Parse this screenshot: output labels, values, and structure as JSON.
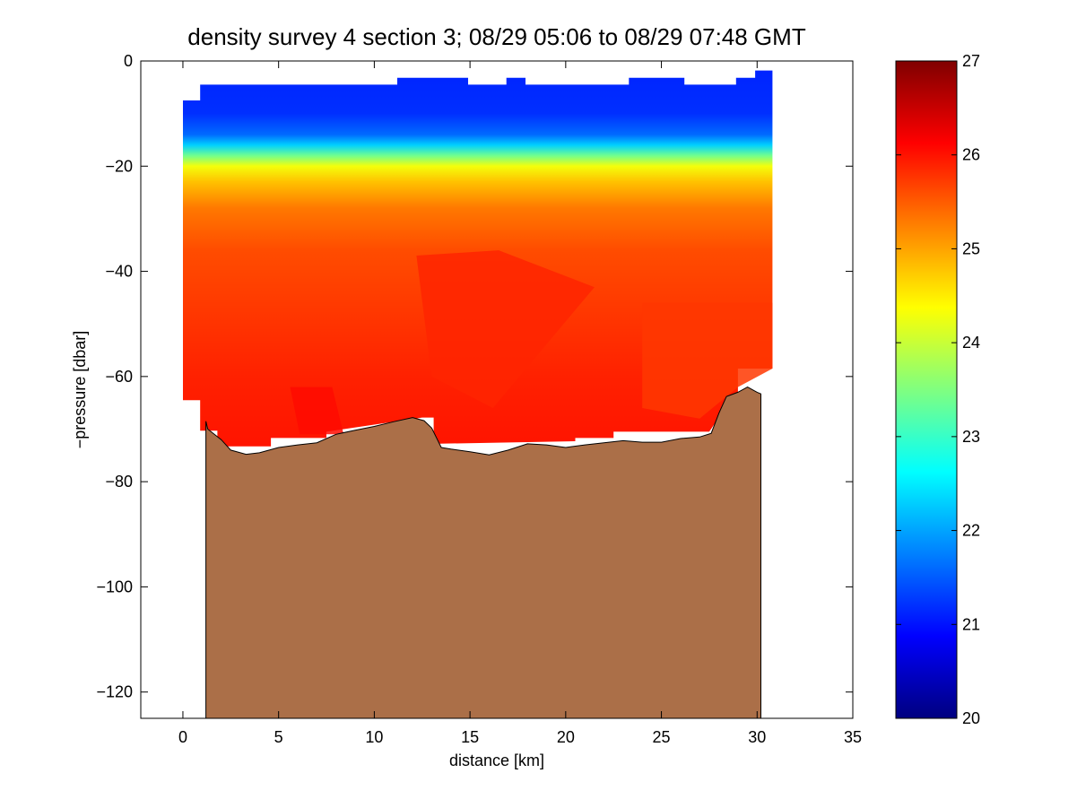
{
  "chart_data": {
    "type": "heatmap",
    "title": "density survey 4 section 3; 08/29 05:06 to 08/29 07:48 GMT",
    "xlabel": "distance [km]",
    "ylabel": "−pressure [dbar]",
    "xlim": [
      -2.2,
      35
    ],
    "ylim": [
      -125,
      0
    ],
    "x_ticks": [
      0,
      5,
      10,
      15,
      20,
      25,
      30,
      35
    ],
    "y_ticks": [
      0,
      -20,
      -40,
      -60,
      -80,
      -100,
      -120
    ],
    "x_tick_labels": [
      "0",
      "5",
      "10",
      "15",
      "20",
      "25",
      "30",
      "35"
    ],
    "y_tick_labels": [
      "0",
      "−20",
      "−40",
      "−60",
      "−80",
      "−100",
      "−120"
    ],
    "colorbar": {
      "colormap": "jet",
      "clim": [
        20,
        27
      ],
      "ticks": [
        20,
        21,
        22,
        23,
        24,
        25,
        26,
        27
      ],
      "tick_labels": [
        "20",
        "21",
        "22",
        "23",
        "24",
        "25",
        "26",
        "27"
      ]
    },
    "data_x_range": [
      0,
      30.8
    ],
    "data_top_edge": [
      [
        0,
        -7.5
      ],
      [
        0.9,
        -7.5
      ],
      [
        0.9,
        -4.5
      ],
      [
        11.2,
        -4.5
      ],
      [
        11.2,
        -3.2
      ],
      [
        14.9,
        -3.2
      ],
      [
        14.9,
        -4.5
      ],
      [
        16.9,
        -4.5
      ],
      [
        16.9,
        -3.2
      ],
      [
        17.9,
        -3.2
      ],
      [
        17.9,
        -4.5
      ],
      [
        23.3,
        -4.5
      ],
      [
        23.3,
        -3.2
      ],
      [
        26.2,
        -3.2
      ],
      [
        26.2,
        -4.5
      ],
      [
        28.9,
        -4.5
      ],
      [
        28.9,
        -3.2
      ],
      [
        29.9,
        -3.2
      ],
      [
        29.9,
        -1.8
      ],
      [
        30.8,
        -1.8
      ]
    ],
    "data_bottom_edge": [
      [
        0,
        -64.5
      ],
      [
        0.9,
        -64.5
      ],
      [
        0.9,
        -70.3
      ],
      [
        1.8,
        -70.3
      ],
      [
        1.8,
        -73.3
      ],
      [
        4.6,
        -73.3
      ],
      [
        4.6,
        -71.7
      ],
      [
        7.5,
        -71.7
      ],
      [
        7.5,
        -70.5
      ],
      [
        12.5,
        -67.8
      ],
      [
        13.1,
        -67.8
      ],
      [
        13.1,
        -72.8
      ],
      [
        20.5,
        -72.3
      ],
      [
        20.5,
        -71.7
      ],
      [
        22.5,
        -71.7
      ],
      [
        22.5,
        -70.5
      ],
      [
        27.5,
        -70.5
      ],
      [
        28.0,
        -67.8
      ],
      [
        29.0,
        -63.3
      ],
      [
        29.0,
        -58.5
      ],
      [
        30.8,
        -58.5
      ]
    ],
    "density_profile": [
      {
        "depth": 0,
        "value": 21.1
      },
      {
        "depth": -10,
        "value": 21.2
      },
      {
        "depth": -14,
        "value": 21.6
      },
      {
        "depth": -16,
        "value": 22.3
      },
      {
        "depth": -18,
        "value": 23.4
      },
      {
        "depth": -20,
        "value": 24.3
      },
      {
        "depth": -23,
        "value": 24.8
      },
      {
        "depth": -28,
        "value": 25.3
      },
      {
        "depth": -36,
        "value": 25.6
      },
      {
        "depth": -48,
        "value": 25.75
      },
      {
        "depth": -60,
        "value": 25.9
      },
      {
        "depth": -75,
        "value": 26.0
      }
    ],
    "bottom_patches": [
      {
        "x": [
          12.2,
          16.5,
          21.5,
          16.2,
          13.0
        ],
        "y": [
          -37,
          -36,
          -43,
          -66,
          -60
        ],
        "value": 25.88
      },
      {
        "x": [
          5.6,
          7.8,
          8.4,
          6.1
        ],
        "y": [
          -62,
          -62,
          -71,
          -71
        ],
        "value": 26.05
      },
      {
        "x": [
          24.0,
          30.8,
          30.8,
          29.0,
          27.0,
          24.0
        ],
        "y": [
          -46,
          -46,
          -58.5,
          -62,
          -68,
          -66
        ],
        "value": 25.75
      }
    ],
    "bathymetry": {
      "color": "#AB6F48",
      "depths": [
        [
          1.2,
          -68.5
        ],
        [
          1.3,
          -70.0
        ],
        [
          2.0,
          -72.0
        ],
        [
          2.5,
          -74.0
        ],
        [
          3.3,
          -74.8
        ],
        [
          4.0,
          -74.5
        ],
        [
          5.0,
          -73.5
        ],
        [
          6.0,
          -73.0
        ],
        [
          7.0,
          -72.6
        ],
        [
          8.0,
          -71.0
        ],
        [
          9.0,
          -70.2
        ],
        [
          10.0,
          -69.5
        ],
        [
          11.0,
          -68.6
        ],
        [
          12.0,
          -67.8
        ],
        [
          12.6,
          -68.4
        ],
        [
          13.0,
          -69.8
        ],
        [
          13.5,
          -73.5
        ],
        [
          14.0,
          -73.8
        ],
        [
          15.0,
          -74.3
        ],
        [
          16.0,
          -74.9
        ],
        [
          17.0,
          -74.0
        ],
        [
          18.0,
          -72.8
        ],
        [
          19.0,
          -73.0
        ],
        [
          20.0,
          -73.5
        ],
        [
          21.0,
          -73.0
        ],
        [
          22.0,
          -72.6
        ],
        [
          23.0,
          -72.2
        ],
        [
          24.0,
          -72.5
        ],
        [
          25.0,
          -72.5
        ],
        [
          26.0,
          -71.8
        ],
        [
          27.0,
          -71.5
        ],
        [
          27.6,
          -70.8
        ],
        [
          28.0,
          -67.0
        ],
        [
          28.4,
          -63.8
        ],
        [
          29.0,
          -63.0
        ],
        [
          29.5,
          -62.0
        ],
        [
          30.0,
          -63.0
        ],
        [
          30.2,
          -63.3
        ]
      ],
      "floor": -125
    }
  }
}
